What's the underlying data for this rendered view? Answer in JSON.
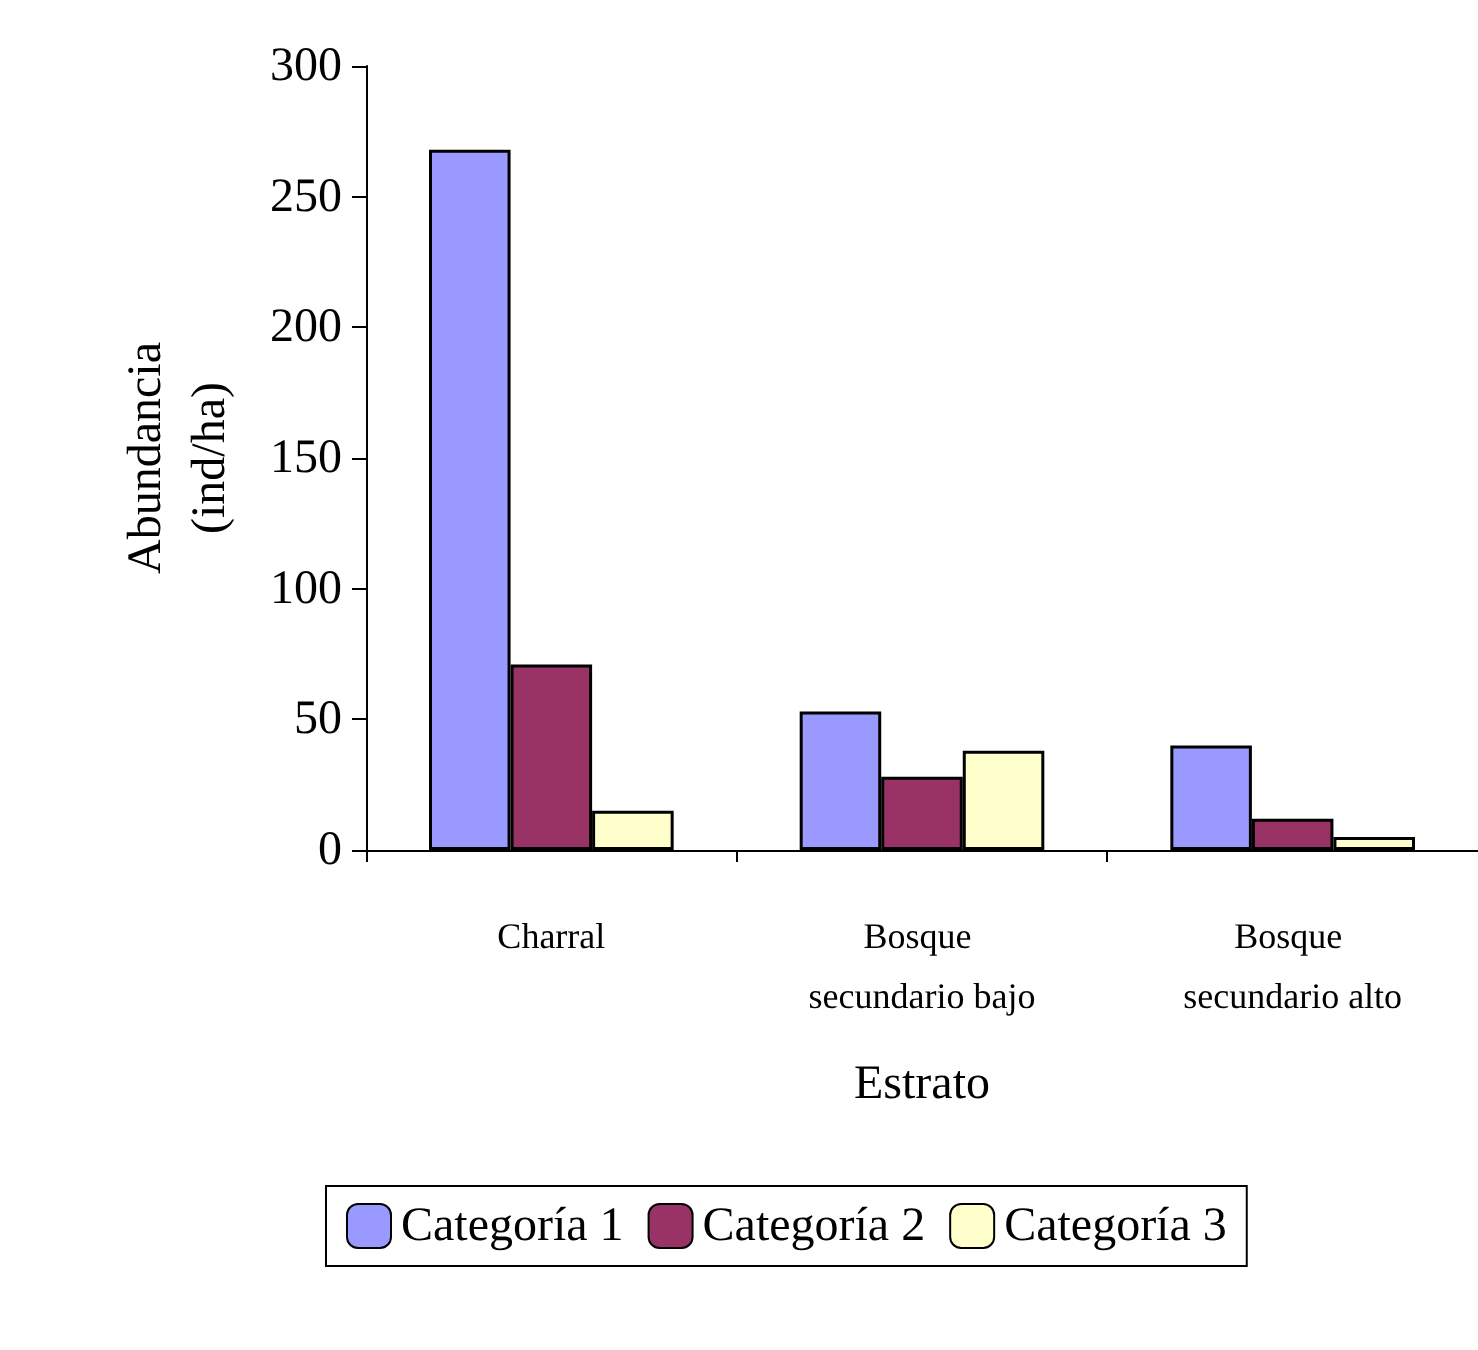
{
  "chart_data": {
    "type": "bar",
    "xlabel": "Estrato",
    "ylabel": "Abundancia\n(ind/ha)",
    "categories": [
      "Charral",
      "Bosque secundario bajo",
      "Bosque secundario alto"
    ],
    "series": [
      {
        "name": "Categoría 1",
        "color": "#9999ff",
        "values": [
          268,
          53,
          40
        ]
      },
      {
        "name": "Categoría 2",
        "color": "#993366",
        "values": [
          71,
          28,
          12
        ]
      },
      {
        "name": "Categoría 3",
        "color": "#ffffcc",
        "values": [
          15,
          38,
          5
        ]
      }
    ],
    "ylim": [
      0,
      300
    ],
    "yticks": [
      0,
      50,
      100,
      150,
      200,
      250,
      300
    ],
    "grid": false,
    "legend": "bottom"
  }
}
